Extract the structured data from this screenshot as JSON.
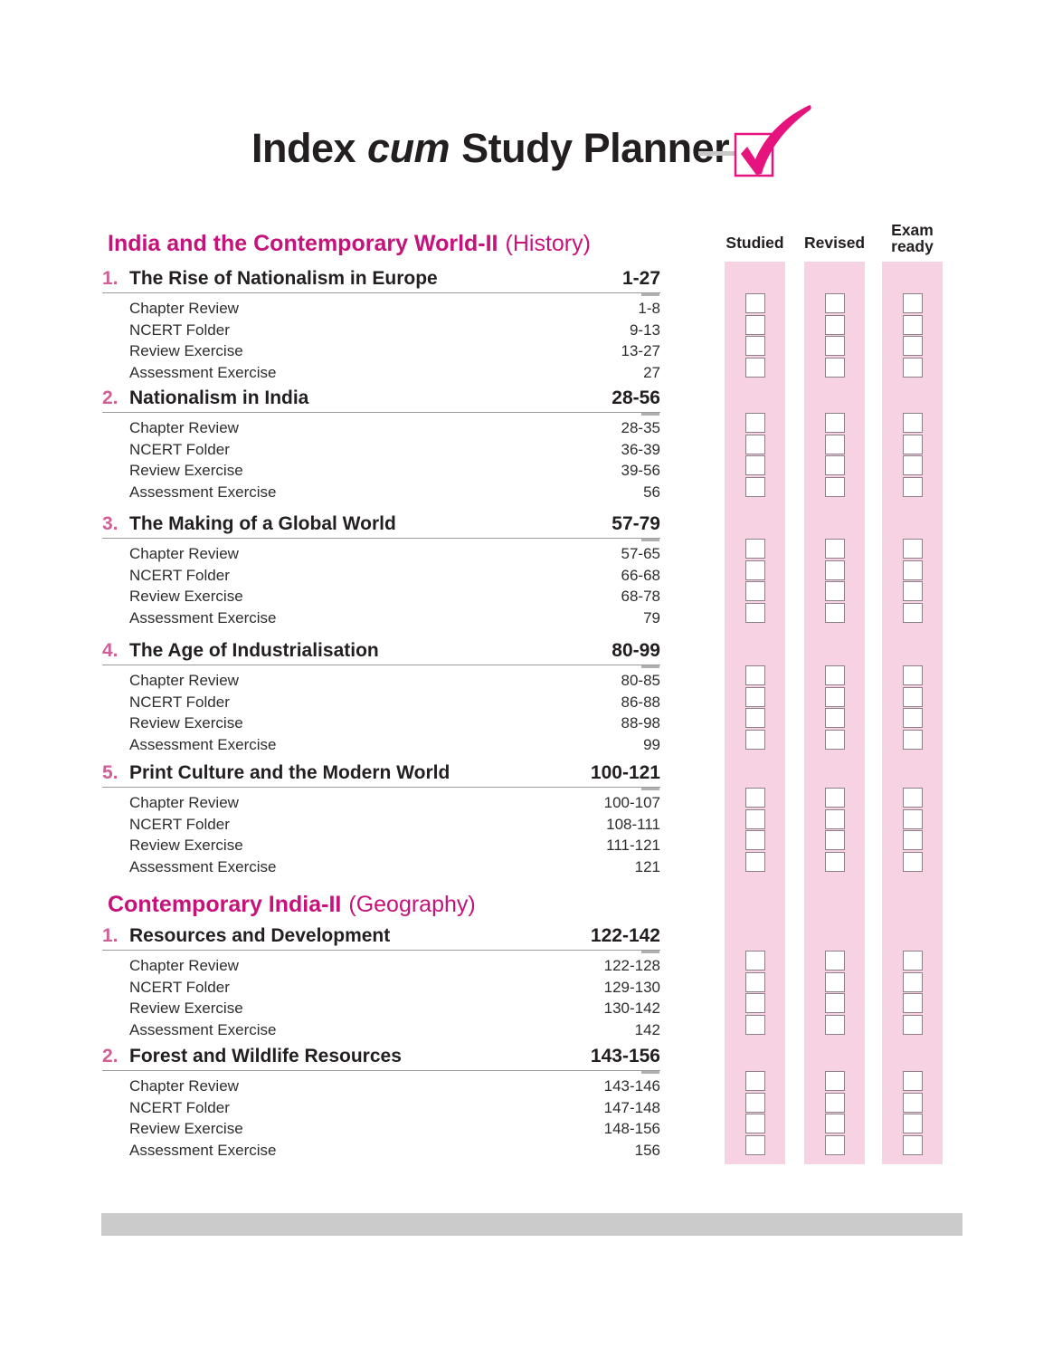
{
  "header": {
    "title_prefix": "Index",
    "title_middle": "cum",
    "title_suffix": "Study Planner",
    "logo_icon": "checkbox-tick-logo"
  },
  "planner": {
    "columns": [
      {
        "key": "studied",
        "label": "Studied"
      },
      {
        "key": "revised",
        "label": "Revised"
      },
      {
        "key": "exam-ready",
        "label": "Exam ready"
      }
    ],
    "checkbox_state": "unchecked",
    "checkboxes_per_chapter_per_column": 4
  },
  "sections": [
    {
      "title": "India and the Contemporary World-II",
      "subtitle": "(History)",
      "chapters": [
        {
          "number": "1.",
          "title": "The Rise of Nationalism in Europe",
          "pages": "1-27",
          "items": [
            {
              "label": "Chapter Review",
              "pages": "1-8"
            },
            {
              "label": "NCERT Folder",
              "pages": "9-13"
            },
            {
              "label": "Review Exercise",
              "pages": "13-27"
            },
            {
              "label": "Assessment Exercise",
              "pages": "27"
            }
          ]
        },
        {
          "number": "2.",
          "title": "Nationalism in India",
          "pages": "28-56",
          "items": [
            {
              "label": "Chapter Review",
              "pages": "28-35"
            },
            {
              "label": "NCERT Folder",
              "pages": "36-39"
            },
            {
              "label": "Review Exercise",
              "pages": "39-56"
            },
            {
              "label": "Assessment Exercise",
              "pages": "56"
            }
          ]
        },
        {
          "number": "3.",
          "title": "The Making of a Global World",
          "pages": "57-79",
          "items": [
            {
              "label": "Chapter Review",
              "pages": "57-65"
            },
            {
              "label": "NCERT Folder",
              "pages": "66-68"
            },
            {
              "label": "Review Exercise",
              "pages": "68-78"
            },
            {
              "label": "Assessment Exercise",
              "pages": "79"
            }
          ]
        },
        {
          "number": "4.",
          "title": "The Age of Industrialisation",
          "pages": "80-99",
          "items": [
            {
              "label": "Chapter Review",
              "pages": "80-85"
            },
            {
              "label": "NCERT Folder",
              "pages": "86-88"
            },
            {
              "label": "Review Exercise",
              "pages": "88-98"
            },
            {
              "label": "Assessment Exercise",
              "pages": "99"
            }
          ]
        },
        {
          "number": "5.",
          "title": "Print Culture and the Modern World",
          "pages": "100-121",
          "items": [
            {
              "label": "Chapter Review",
              "pages": "100-107"
            },
            {
              "label": "NCERT Folder",
              "pages": "108-111"
            },
            {
              "label": "Review Exercise",
              "pages": "111-121"
            },
            {
              "label": "Assessment Exercise",
              "pages": "121"
            }
          ]
        }
      ]
    },
    {
      "title": "Contemporary India-II",
      "subtitle": "(Geography)",
      "chapters": [
        {
          "number": "1.",
          "title": "Resources and Development",
          "pages": "122-142",
          "items": [
            {
              "label": "Chapter Review",
              "pages": "122-128"
            },
            {
              "label": "NCERT Folder",
              "pages": "129-130"
            },
            {
              "label": "Review Exercise",
              "pages": "130-142"
            },
            {
              "label": "Assessment Exercise",
              "pages": "142"
            }
          ]
        },
        {
          "number": "2.",
          "title": "Forest and Wildlife Resources",
          "pages": "143-156",
          "items": [
            {
              "label": "Chapter Review",
              "pages": "143-146"
            },
            {
              "label": "NCERT Folder",
              "pages": "147-148"
            },
            {
              "label": "Review Exercise",
              "pages": "148-156"
            },
            {
              "label": "Assessment Exercise",
              "pages": "156"
            }
          ]
        }
      ]
    }
  ],
  "colors": {
    "accent_magenta": "#c6127b",
    "chapter_number_pink": "#d05f96",
    "strip_pink": "#f7d2e2",
    "checkbox_border": "#8d7f87",
    "logo_magenta": "#e6127d",
    "dash_gray": "#c8c8c8",
    "footer_gray": "#cbcbcb",
    "text_black": "#231f20",
    "rule_gray": "#9b9b9b"
  }
}
